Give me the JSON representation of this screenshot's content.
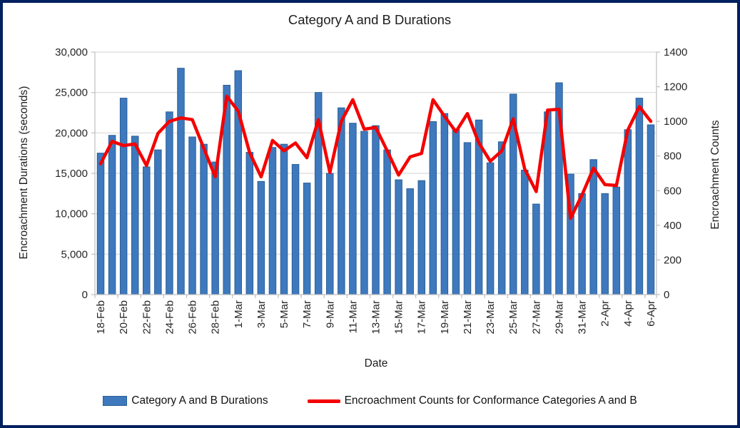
{
  "chart_data": {
    "type": "bar+line combo",
    "title": "Category A and B Durations",
    "xlabel": "Date",
    "ylabel_left": "Encroachment Durations (seconds)",
    "ylabel_right": "Encroachment Counts",
    "grid": "horizontal gridlines every 5,000 (left axis)",
    "legend_position": "bottom",
    "left_axis": {
      "min": 0,
      "max": 30000,
      "step": 5000,
      "ticks": [
        "0",
        "5,000",
        "10,000",
        "15,000",
        "20,000",
        "25,000",
        "30,000"
      ]
    },
    "right_axis": {
      "min": 0,
      "max": 1400,
      "step": 200,
      "ticks": [
        "0",
        "200",
        "400",
        "600",
        "800",
        "1000",
        "1200",
        "1400"
      ]
    },
    "x_tick_label_every": 2,
    "categories": [
      "18-Feb",
      "19-Feb",
      "20-Feb",
      "21-Feb",
      "22-Feb",
      "23-Feb",
      "24-Feb",
      "25-Feb",
      "26-Feb",
      "27-Feb",
      "28-Feb",
      "29-Feb",
      "1-Mar",
      "2-Mar",
      "3-Mar",
      "4-Mar",
      "5-Mar",
      "6-Mar",
      "7-Mar",
      "8-Mar",
      "9-Mar",
      "10-Mar",
      "11-Mar",
      "12-Mar",
      "13-Mar",
      "14-Mar",
      "15-Mar",
      "16-Mar",
      "17-Mar",
      "18-Mar",
      "19-Mar",
      "20-Mar",
      "21-Mar",
      "22-Mar",
      "23-Mar",
      "24-Mar",
      "25-Mar",
      "26-Mar",
      "27-Mar",
      "28-Mar",
      "29-Mar",
      "30-Mar",
      "31-Mar",
      "1-Apr",
      "2-Apr",
      "3-Apr",
      "4-Apr",
      "5-Apr",
      "6-Apr"
    ],
    "series": [
      {
        "name": "Category A and B Durations",
        "type": "bar",
        "axis": "left",
        "values": [
          17500,
          19700,
          24300,
          19600,
          15800,
          17900,
          22600,
          28000,
          19500,
          18600,
          16400,
          25900,
          27700,
          17600,
          14000,
          18200,
          18600,
          16100,
          13800,
          25000,
          15000,
          23100,
          21200,
          20200,
          20900,
          17900,
          14200,
          13100,
          14100,
          21400,
          22400,
          20400,
          18800,
          21600,
          16300,
          18900,
          24800,
          15400,
          11200,
          22600,
          26200,
          14900,
          12500,
          16700,
          12500,
          13300,
          20400,
          24300,
          21000
        ]
      },
      {
        "name": "Encroachment Counts for Conformance Categories A and B",
        "type": "line",
        "axis": "right",
        "values": [
          755,
          885,
          860,
          870,
          745,
          930,
          1000,
          1020,
          1010,
          845,
          680,
          1145,
          1060,
          820,
          680,
          890,
          830,
          875,
          790,
          1010,
          705,
          1000,
          1125,
          955,
          965,
          830,
          690,
          795,
          815,
          1125,
          1030,
          940,
          1045,
          875,
          770,
          830,
          1015,
          725,
          595,
          1065,
          1070,
          440,
          575,
          730,
          635,
          630,
          950,
          1085,
          1000
        ]
      }
    ],
    "colors": {
      "bar_fill": "#3E79BE",
      "bar_border": "#2B5F96",
      "line": "#F40000",
      "gridline": "#D9D9D9",
      "axis_line": "#BFBFBF",
      "tick_text": "#262626",
      "frame_border": "#00205F",
      "background": "#FFFFFF"
    }
  },
  "legend": {
    "items": [
      {
        "label": "Category A and B Durations",
        "swatch": "blue-bar-swatch"
      },
      {
        "label": "Encroachment Counts for Conformance Categories A and B",
        "swatch": "red-line-swatch"
      }
    ]
  }
}
